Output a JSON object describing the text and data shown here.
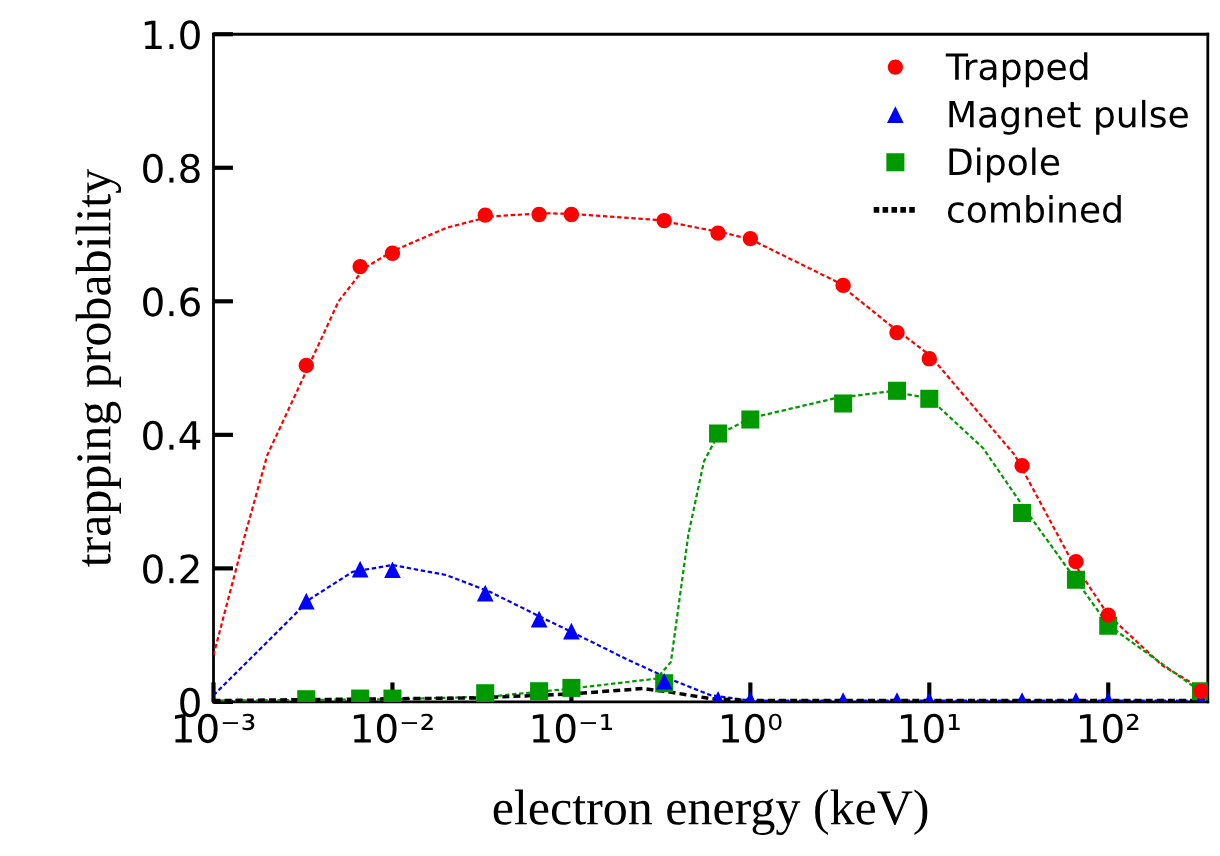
{
  "chart_data": {
    "type": "scatter",
    "xlabel": "electron energy (keV)",
    "ylabel": "trapping probability",
    "log": "x",
    "xlim": [
      0.001,
      360
    ],
    "xticks": [
      {
        "value": 0.001,
        "label": "10⁻³"
      },
      {
        "value": 0.01,
        "label": "10⁻²"
      },
      {
        "value": 0.1,
        "label": "10⁻¹"
      },
      {
        "value": 1,
        "label": "10⁰"
      },
      {
        "value": 10,
        "label": "10¹"
      },
      {
        "value": 100,
        "label": "10²"
      }
    ],
    "ylim": [
      0,
      1.0
    ],
    "yticks": [
      0,
      0.2,
      0.4,
      0.6,
      0.8,
      {
        "value": 1.0,
        "label": "1.0"
      }
    ],
    "grid": false,
    "legend": "top right",
    "series": [
      {
        "name": "Trapped",
        "color": "#ff0000",
        "marker": "circle",
        "x": [
          0.0033,
          0.0066,
          0.01,
          0.033,
          0.066,
          0.1,
          0.33,
          0.66,
          1,
          3.3,
          6.6,
          10,
          33,
          66,
          100,
          330
        ],
        "values": [
          0.504,
          0.652,
          0.672,
          0.729,
          0.73,
          0.73,
          0.721,
          0.702,
          0.694,
          0.624,
          0.553,
          0.514,
          0.354,
          0.21,
          0.13,
          0.016
        ]
      },
      {
        "name": "Magnet pulse",
        "color": "#0000ff",
        "marker": "triangle",
        "x": [
          0.0033,
          0.0066,
          0.01,
          0.033,
          0.066,
          0.1,
          0.33,
          0.66,
          1,
          3.3,
          6.6,
          10,
          33,
          66,
          100,
          330
        ],
        "values": [
          0.151,
          0.199,
          0.198,
          0.163,
          0.124,
          0.106,
          0.031,
          0.004,
          0.003,
          0.002,
          0.002,
          0.002,
          0.002,
          0.002,
          0.002,
          0.002
        ]
      },
      {
        "name": "Dipole",
        "color": "#009900",
        "marker": "square",
        "x": [
          0.0033,
          0.0066,
          0.01,
          0.033,
          0.066,
          0.1,
          0.33,
          0.66,
          1,
          3.3,
          6.6,
          10,
          33,
          66,
          100,
          330
        ],
        "values": [
          0.004,
          0.005,
          0.005,
          0.013,
          0.016,
          0.021,
          0.028,
          0.402,
          0.423,
          0.447,
          0.466,
          0.454,
          0.283,
          0.183,
          0.114,
          0.016
        ]
      },
      {
        "type": "line",
        "color": "#ff0000",
        "line_style": "dashed",
        "x": [
          0.001,
          0.0015,
          0.002,
          0.0035,
          0.005,
          0.007,
          0.01,
          0.02,
          0.035,
          0.07,
          0.1,
          0.3,
          0.7,
          1,
          3,
          6,
          10,
          30,
          60,
          100,
          200,
          330
        ],
        "values": [
          0.07,
          0.25,
          0.37,
          0.51,
          0.6,
          0.65,
          0.675,
          0.71,
          0.727,
          0.732,
          0.731,
          0.722,
          0.703,
          0.693,
          0.63,
          0.565,
          0.52,
          0.37,
          0.22,
          0.13,
          0.055,
          0.02
        ]
      },
      {
        "type": "line",
        "color": "#0000ff",
        "line_style": "dashed",
        "x": [
          0.001,
          0.002,
          0.0035,
          0.006,
          0.01,
          0.02,
          0.035,
          0.07,
          0.1,
          0.2,
          0.35,
          0.6,
          1,
          330
        ],
        "values": [
          0.01,
          0.09,
          0.155,
          0.195,
          0.205,
          0.19,
          0.165,
          0.125,
          0.105,
          0.065,
          0.035,
          0.01,
          0.002,
          0.002
        ]
      },
      {
        "type": "line",
        "color": "#009900",
        "line_style": "dashed",
        "x": [
          0.001,
          0.01,
          0.035,
          0.1,
          0.3,
          0.36,
          0.45,
          0.55,
          0.66,
          1,
          3,
          6,
          10,
          20,
          35,
          65,
          100,
          330
        ],
        "values": [
          0.002,
          0.004,
          0.008,
          0.02,
          0.035,
          0.06,
          0.25,
          0.36,
          0.4,
          0.425,
          0.455,
          0.465,
          0.455,
          0.38,
          0.285,
          0.185,
          0.115,
          0.015
        ]
      },
      {
        "type": "line",
        "name": "combined",
        "color": "#000000",
        "line_style": "dashed",
        "x": [
          0.001,
          0.03,
          0.1,
          0.25,
          0.35,
          0.6,
          1,
          330
        ],
        "values": [
          0.002,
          0.006,
          0.012,
          0.02,
          0.015,
          0.005,
          0.002,
          0.002
        ]
      }
    ]
  }
}
